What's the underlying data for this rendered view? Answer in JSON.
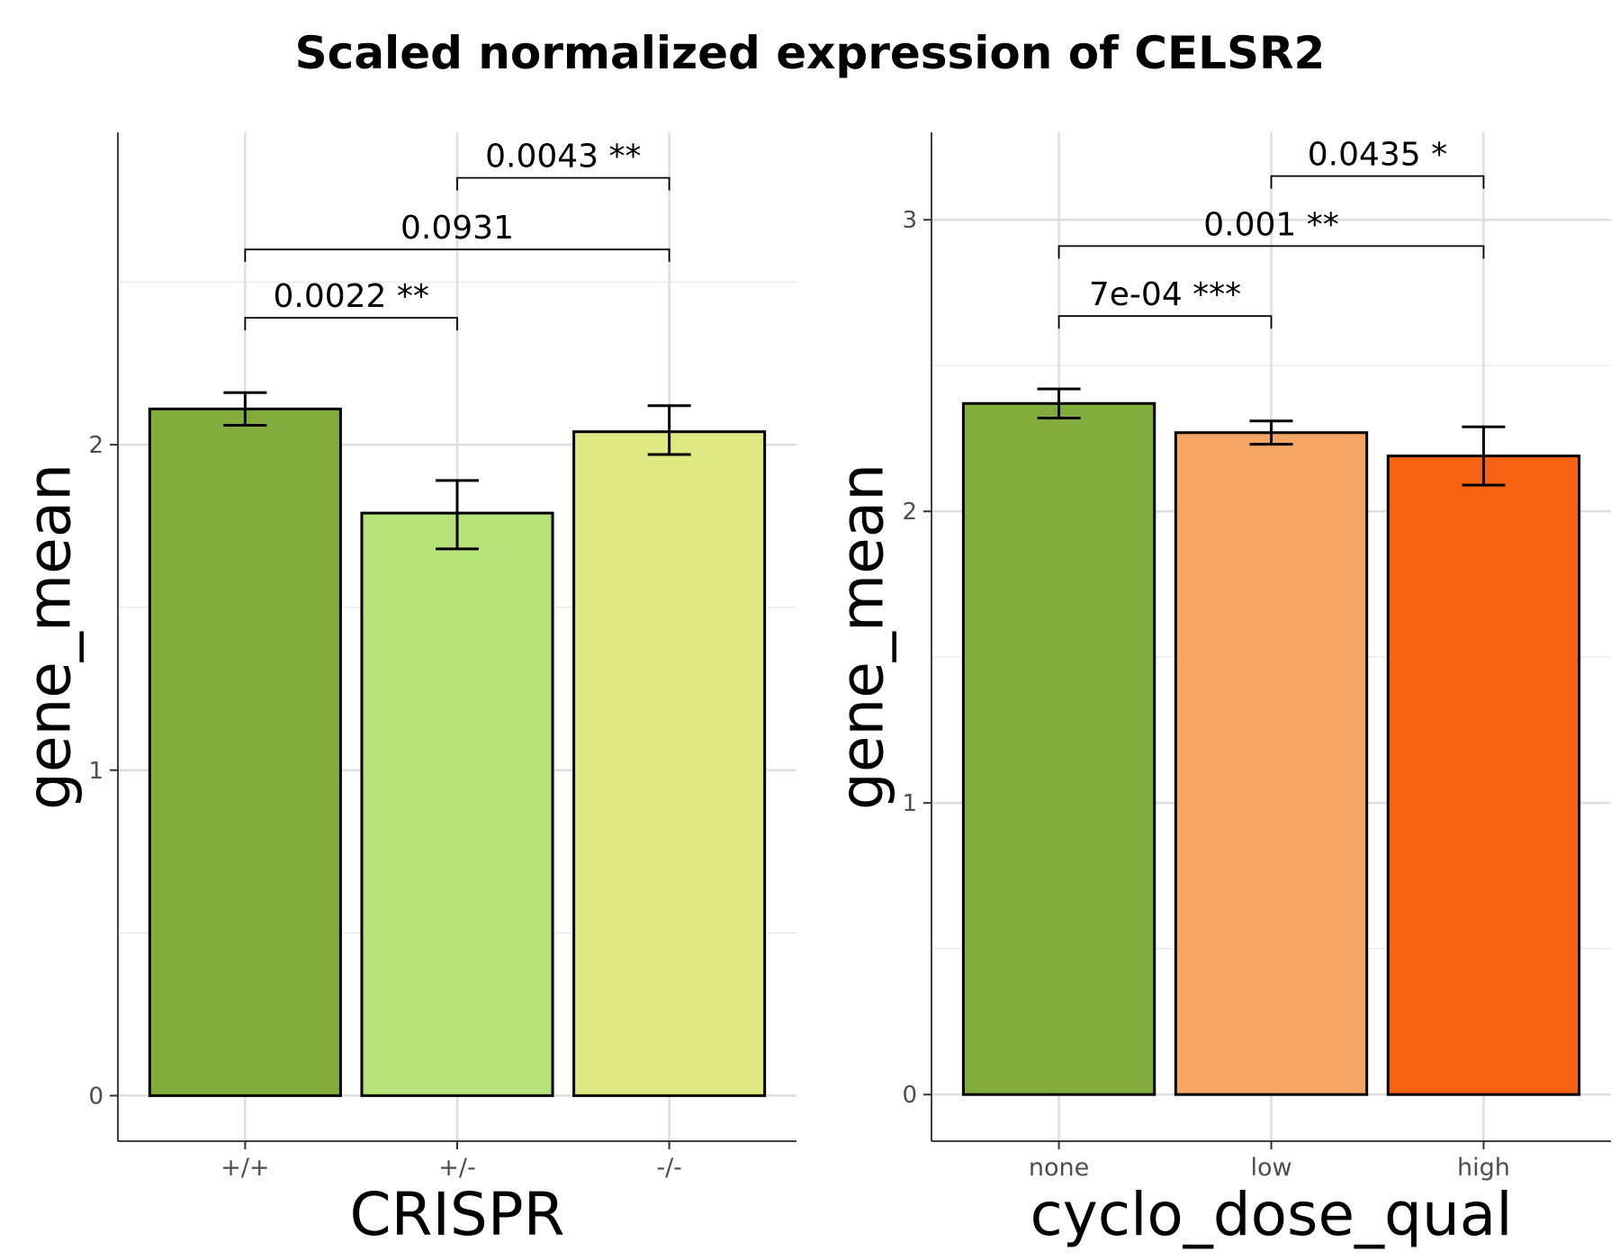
{
  "title": "Scaled normalized expression of CELSR2",
  "chart_data": [
    {
      "type": "bar",
      "xlabel": "CRISPR",
      "ylabel": "gene_mean",
      "categories": [
        "+/+",
        "+/-",
        "-/-"
      ],
      "values": [
        2.11,
        1.79,
        2.04
      ],
      "error_low": [
        2.06,
        1.68,
        1.97
      ],
      "error_high": [
        2.16,
        1.89,
        2.12
      ],
      "colors": [
        "#82ad3c",
        "#b8e27a",
        "#dee983"
      ],
      "ylim": [
        -0.14,
        2.96
      ],
      "yticks": [
        0,
        1,
        2
      ],
      "ytick_labels": [
        "0",
        "1",
        "2"
      ],
      "grid": true,
      "brackets": [
        {
          "from": 0,
          "to": 1,
          "y": 2.39,
          "label": "0.0022 **"
        },
        {
          "from": 0,
          "to": 2,
          "y": 2.6,
          "label": "0.0931"
        },
        {
          "from": 1,
          "to": 2,
          "y": 2.82,
          "label": "0.0043 **"
        }
      ]
    },
    {
      "type": "bar",
      "xlabel": "cyclo_dose_qual",
      "ylabel": "gene_mean",
      "categories": [
        "none",
        "low",
        "high"
      ],
      "values": [
        2.37,
        2.27,
        2.19
      ],
      "error_low": [
        2.32,
        2.23,
        2.09
      ],
      "error_high": [
        2.42,
        2.31,
        2.29
      ],
      "colors": [
        "#82ad3c",
        "#f5a664",
        "#f86213"
      ],
      "ylim": [
        -0.16,
        3.3
      ],
      "yticks": [
        0,
        1,
        2,
        3
      ],
      "ytick_labels": [
        "0",
        "1",
        "2",
        "3"
      ],
      "grid": true,
      "brackets": [
        {
          "from": 0,
          "to": 1,
          "y": 2.67,
          "label": "7e-04 ***"
        },
        {
          "from": 0,
          "to": 2,
          "y": 2.91,
          "label": "0.001 **"
        },
        {
          "from": 1,
          "to": 2,
          "y": 3.15,
          "label": "0.0435 *"
        }
      ]
    }
  ]
}
